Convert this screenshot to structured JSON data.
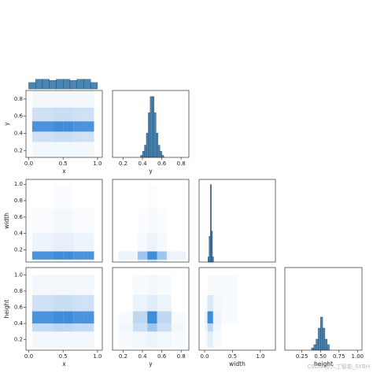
{
  "chart_data": [
    {
      "type": "hist",
      "bins": [
        0,
        0.1,
        0.2,
        0.3,
        0.4,
        0.5,
        0.6,
        0.7,
        0.8,
        0.9,
        1.0
      ],
      "counts": [
        6,
        9,
        9,
        8,
        9,
        9,
        8,
        9,
        9,
        6
      ],
      "xlim": [
        -0.04,
        1.07
      ],
      "ylim": [
        0,
        80
      ],
      "color": "#4a86b4"
    },
    {
      "type": "heatmap",
      "xbins": [
        0.05,
        0.2,
        0.35,
        0.5,
        0.65,
        0.8,
        0.95
      ],
      "ybins": [
        0.12,
        0.3,
        0.42,
        0.54,
        0.7,
        0.9
      ],
      "counts": [
        [
          2,
          2,
          2,
          2,
          2,
          2
        ],
        [
          8,
          8,
          9,
          9,
          8,
          8
        ],
        [
          30,
          30,
          32,
          32,
          30,
          30
        ],
        [
          8,
          8,
          9,
          9,
          8,
          8
        ],
        [
          2,
          2,
          2,
          2,
          2,
          2
        ]
      ],
      "xlim": [
        -0.04,
        1.07
      ],
      "ylim": [
        0.12,
        0.9
      ],
      "xticks": [
        {
          "value": 0,
          "label": "0.0"
        },
        0.5,
        {
          "value": 1,
          "label": "1.0"
        }
      ],
      "yticks": [
        0.2,
        0.4,
        0.6,
        0.8
      ],
      "xlabel": "x",
      "ylabel": "y",
      "color": "#2a7fd4"
    },
    {
      "type": "hist",
      "bins": [
        0.38,
        0.4,
        0.42,
        0.44,
        0.46,
        0.48,
        0.5,
        0.52,
        0.54,
        0.56,
        0.58,
        0.6,
        0.62
      ],
      "counts": [
        1,
        3,
        6,
        12,
        22,
        30,
        30,
        22,
        12,
        6,
        3,
        1
      ],
      "xlim": [
        0.09,
        0.88
      ],
      "ylim": [
        0,
        33
      ],
      "xticks": [
        0.2,
        0.4,
        0.6,
        0.8
      ],
      "xlabel": "y",
      "color": "#4a86b4"
    },
    {
      "type": "heatmap",
      "xbins": [
        0.05,
        0.2,
        0.35,
        0.5,
        0.65,
        0.8,
        0.95
      ],
      "ybins": [
        0.05,
        0.08,
        0.18,
        0.4,
        0.7,
        1.0
      ],
      "counts": [
        [
          2,
          2,
          2,
          2,
          2,
          2
        ],
        [
          30,
          30,
          32,
          32,
          30,
          30
        ],
        [
          3,
          3,
          4,
          4,
          3,
          3
        ],
        [
          1,
          1,
          2,
          2,
          1,
          1
        ],
        [
          0,
          0,
          1,
          1,
          0,
          0
        ]
      ],
      "xlim": [
        -0.04,
        1.07
      ],
      "ylim": [
        0.05,
        1.06
      ],
      "yticks": [
        0.2,
        0.4,
        0.6,
        0.8,
        {
          "value": 1,
          "label": "1.0"
        }
      ],
      "ylabel": "width",
      "color": "#2a7fd4"
    },
    {
      "type": "heatmap",
      "xbins": [
        0.15,
        0.35,
        0.45,
        0.55,
        0.65,
        0.85
      ],
      "ybins": [
        0.05,
        0.08,
        0.18,
        0.4,
        0.7,
        1.0
      ],
      "counts": [
        [
          1,
          6,
          10,
          6,
          1
        ],
        [
          4,
          20,
          40,
          20,
          4
        ],
        [
          0,
          2,
          4,
          2,
          0
        ],
        [
          0,
          1,
          2,
          1,
          0
        ],
        [
          0,
          0,
          1,
          0,
          0
        ]
      ],
      "xlim": [
        0.09,
        0.88
      ],
      "ylim": [
        0.05,
        1.06
      ],
      "color": "#2a7fd4"
    },
    {
      "type": "hist",
      "bins": [
        0.06,
        0.08,
        0.1,
        0.12,
        0.14,
        0.16
      ],
      "counts": [
        2,
        10,
        30,
        12,
        2
      ],
      "xlim": [
        -0.1,
        1.27
      ],
      "ylim": [
        0,
        32
      ],
      "color": "#4a86b4"
    },
    {
      "type": "heatmap",
      "xbins": [
        0.05,
        0.2,
        0.35,
        0.5,
        0.65,
        0.8,
        0.95
      ],
      "ybins": [
        0.1,
        0.3,
        0.4,
        0.55,
        0.75,
        1.0
      ],
      "counts": [
        [
          2,
          2,
          2,
          2,
          2,
          2
        ],
        [
          10,
          10,
          11,
          11,
          10,
          10
        ],
        [
          30,
          30,
          32,
          32,
          30,
          30
        ],
        [
          8,
          8,
          9,
          9,
          8,
          8
        ],
        [
          2,
          2,
          2,
          2,
          2,
          2
        ]
      ],
      "xlim": [
        -0.04,
        1.07
      ],
      "ylim": [
        0.07,
        1.09
      ],
      "xticks": [
        {
          "value": 0,
          "label": "0.0"
        },
        0.5,
        {
          "value": 1,
          "label": "1.0"
        }
      ],
      "yticks": [
        0.2,
        0.4,
        0.6,
        0.8,
        {
          "value": 1,
          "label": "1.0"
        }
      ],
      "xlabel": "x",
      "ylabel": "height",
      "color": "#2a7fd4"
    },
    {
      "type": "heatmap",
      "xbins": [
        0.15,
        0.3,
        0.45,
        0.55,
        0.7,
        0.85
      ],
      "ybins": [
        0.1,
        0.3,
        0.4,
        0.55,
        0.75,
        1.0
      ],
      "counts": [
        [
          1,
          2,
          3,
          2,
          1
        ],
        [
          2,
          8,
          15,
          8,
          2
        ],
        [
          1,
          10,
          30,
          10,
          1
        ],
        [
          0,
          3,
          5,
          3,
          0
        ],
        [
          0,
          1,
          2,
          1,
          0
        ]
      ],
      "xlim": [
        0.09,
        0.88
      ],
      "ylim": [
        0.07,
        1.09
      ],
      "xticks": [
        0.2,
        0.4,
        0.6,
        0.8
      ],
      "xlabel": "y",
      "color": "#2a7fd4"
    },
    {
      "type": "heatmap",
      "xbins": [
        0,
        0.05,
        0.15,
        0.3,
        0.6,
        1.0
      ],
      "ybins": [
        0.1,
        0.3,
        0.4,
        0.55,
        0.75,
        1.0
      ],
      "counts": [
        [
          1,
          4,
          1,
          0,
          0
        ],
        [
          2,
          10,
          2,
          0,
          0
        ],
        [
          3,
          30,
          3,
          1,
          0
        ],
        [
          1,
          6,
          2,
          1,
          0
        ],
        [
          0,
          1,
          1,
          1,
          0
        ]
      ],
      "xlim": [
        -0.1,
        1.27
      ],
      "ylim": [
        0.07,
        1.09
      ],
      "xticks": [
        {
          "value": 0,
          "label": "0.0"
        },
        0.5,
        {
          "value": 1,
          "label": "1.0"
        }
      ],
      "xlabel": "width",
      "color": "#2a7fd4"
    },
    {
      "type": "hist",
      "bins": [
        0.38,
        0.41,
        0.44,
        0.47,
        0.5,
        0.53,
        0.56,
        0.59,
        0.62
      ],
      "counts": [
        2,
        5,
        10,
        20,
        30,
        20,
        10,
        5
      ],
      "xlim": [
        0.02,
        1.06
      ],
      "ylim": [
        0,
        75
      ],
      "xticks": [
        0.25,
        {
          "value": 0.5,
          "label": "0.50"
        },
        0.75,
        {
          "value": 1,
          "label": "1.00"
        }
      ],
      "xlabel": "height",
      "color": "#4a86b4"
    }
  ],
  "watermark": "CSDN @人工智能_SYBH"
}
